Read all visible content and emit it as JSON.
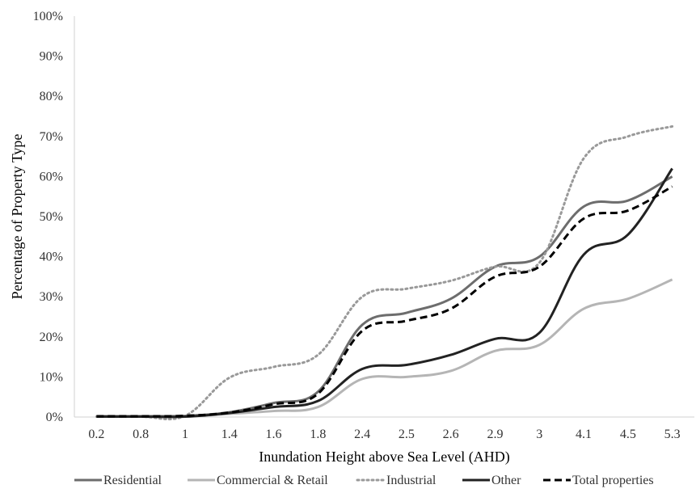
{
  "chart_data": {
    "type": "line",
    "title": "",
    "xlabel": "Inundation Height above Sea Level (AHD)",
    "ylabel": "Percentage of Property Type",
    "categories": [
      "0.2",
      "0.8",
      "1",
      "1.4",
      "1.6",
      "1.8",
      "2.4",
      "2.5",
      "2.6",
      "2.9",
      "3",
      "4.1",
      "4.5",
      "5.3"
    ],
    "ylim": [
      0,
      100
    ],
    "yticks": [
      "0%",
      "10%",
      "20%",
      "30%",
      "40%",
      "50%",
      "60%",
      "70%",
      "80%",
      "90%",
      "100%"
    ],
    "grid": false,
    "legend_position": "bottom",
    "series": [
      {
        "name": "Residential",
        "values": [
          0.2,
          0.2,
          0.3,
          1.2,
          3.5,
          6.3,
          23,
          26,
          29.5,
          37.5,
          40,
          52.5,
          54,
          60
        ],
        "color": "#6d6d6d",
        "dash": "solid"
      },
      {
        "name": "Commercial & Retail",
        "values": [
          0.1,
          0.1,
          0.1,
          0.8,
          1.5,
          2.5,
          9.5,
          10,
          11.5,
          16.5,
          18,
          27,
          29.5,
          34.3
        ],
        "color": "#b5b5b5",
        "dash": "solid"
      },
      {
        "name": "Industrial",
        "values": [
          0.1,
          0.1,
          0.3,
          9.8,
          12.5,
          15.5,
          30,
          32,
          34,
          37.5,
          38.5,
          64.5,
          70,
          72.5
        ],
        "color": "#999999",
        "dash": "dotted"
      },
      {
        "name": "Other",
        "values": [
          0.1,
          0.1,
          0.1,
          1,
          2.5,
          4,
          12,
          13,
          15.5,
          19.5,
          21,
          40.5,
          45.5,
          62
        ],
        "color": "#222222",
        "dash": "solid"
      },
      {
        "name": "Total properties",
        "values": [
          0.2,
          0.2,
          0.3,
          1.1,
          3.2,
          5.8,
          21.5,
          24,
          27,
          35,
          37.5,
          49.5,
          51.5,
          57.5
        ],
        "color": "#000000",
        "dash": "dashed"
      }
    ]
  }
}
